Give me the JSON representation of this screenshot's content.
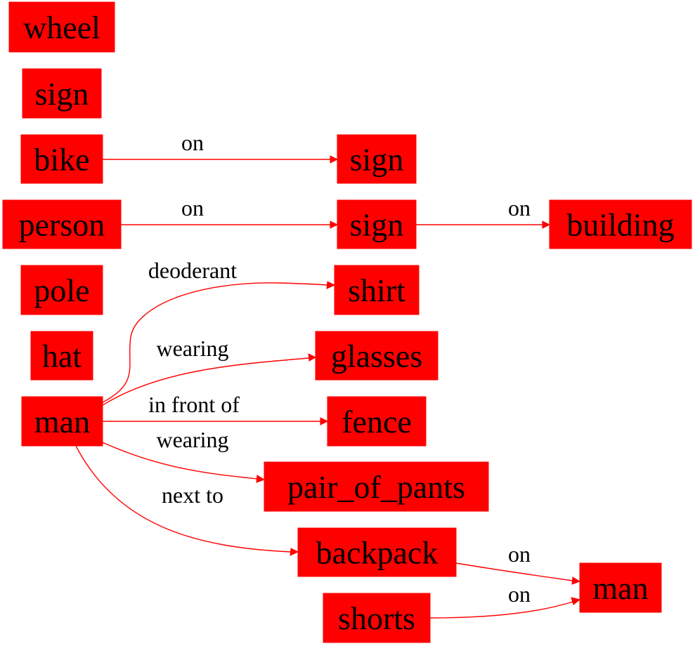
{
  "colors": {
    "node_fill": "#ff0000",
    "edge": "#ff0000",
    "text": "#000000",
    "background": "#ffffff"
  },
  "nodes": [
    {
      "id": "wheel",
      "label": "wheel"
    },
    {
      "id": "sign1",
      "label": "sign"
    },
    {
      "id": "bike",
      "label": "bike"
    },
    {
      "id": "sign2",
      "label": "sign"
    },
    {
      "id": "person",
      "label": "person"
    },
    {
      "id": "sign3",
      "label": "sign"
    },
    {
      "id": "building",
      "label": "building"
    },
    {
      "id": "pole",
      "label": "pole"
    },
    {
      "id": "shirt",
      "label": "shirt"
    },
    {
      "id": "hat",
      "label": "hat"
    },
    {
      "id": "glasses",
      "label": "glasses"
    },
    {
      "id": "man1",
      "label": "man"
    },
    {
      "id": "fence",
      "label": "fence"
    },
    {
      "id": "pants",
      "label": "pair_of_pants"
    },
    {
      "id": "backpack",
      "label": "backpack"
    },
    {
      "id": "man2",
      "label": "man"
    },
    {
      "id": "shorts",
      "label": "shorts"
    }
  ],
  "edges": [
    {
      "id": "e0",
      "from": "bike",
      "to": "sign2",
      "label": "on"
    },
    {
      "id": "e1",
      "from": "person",
      "to": "sign3",
      "label": "on"
    },
    {
      "id": "e2",
      "from": "sign3",
      "to": "building",
      "label": "on"
    },
    {
      "id": "e3",
      "from": "man1",
      "to": "shirt",
      "label": "deoderant"
    },
    {
      "id": "e4",
      "from": "man1",
      "to": "glasses",
      "label": "wearing"
    },
    {
      "id": "e5",
      "from": "man1",
      "to": "fence",
      "label": "in front of"
    },
    {
      "id": "e6",
      "from": "man1",
      "to": "pants",
      "label": "wearing"
    },
    {
      "id": "e7",
      "from": "man1",
      "to": "backpack",
      "label": "next to"
    },
    {
      "id": "e8",
      "from": "backpack",
      "to": "man2",
      "label": "on"
    },
    {
      "id": "e9",
      "from": "shorts",
      "to": "man2",
      "label": "on"
    }
  ]
}
